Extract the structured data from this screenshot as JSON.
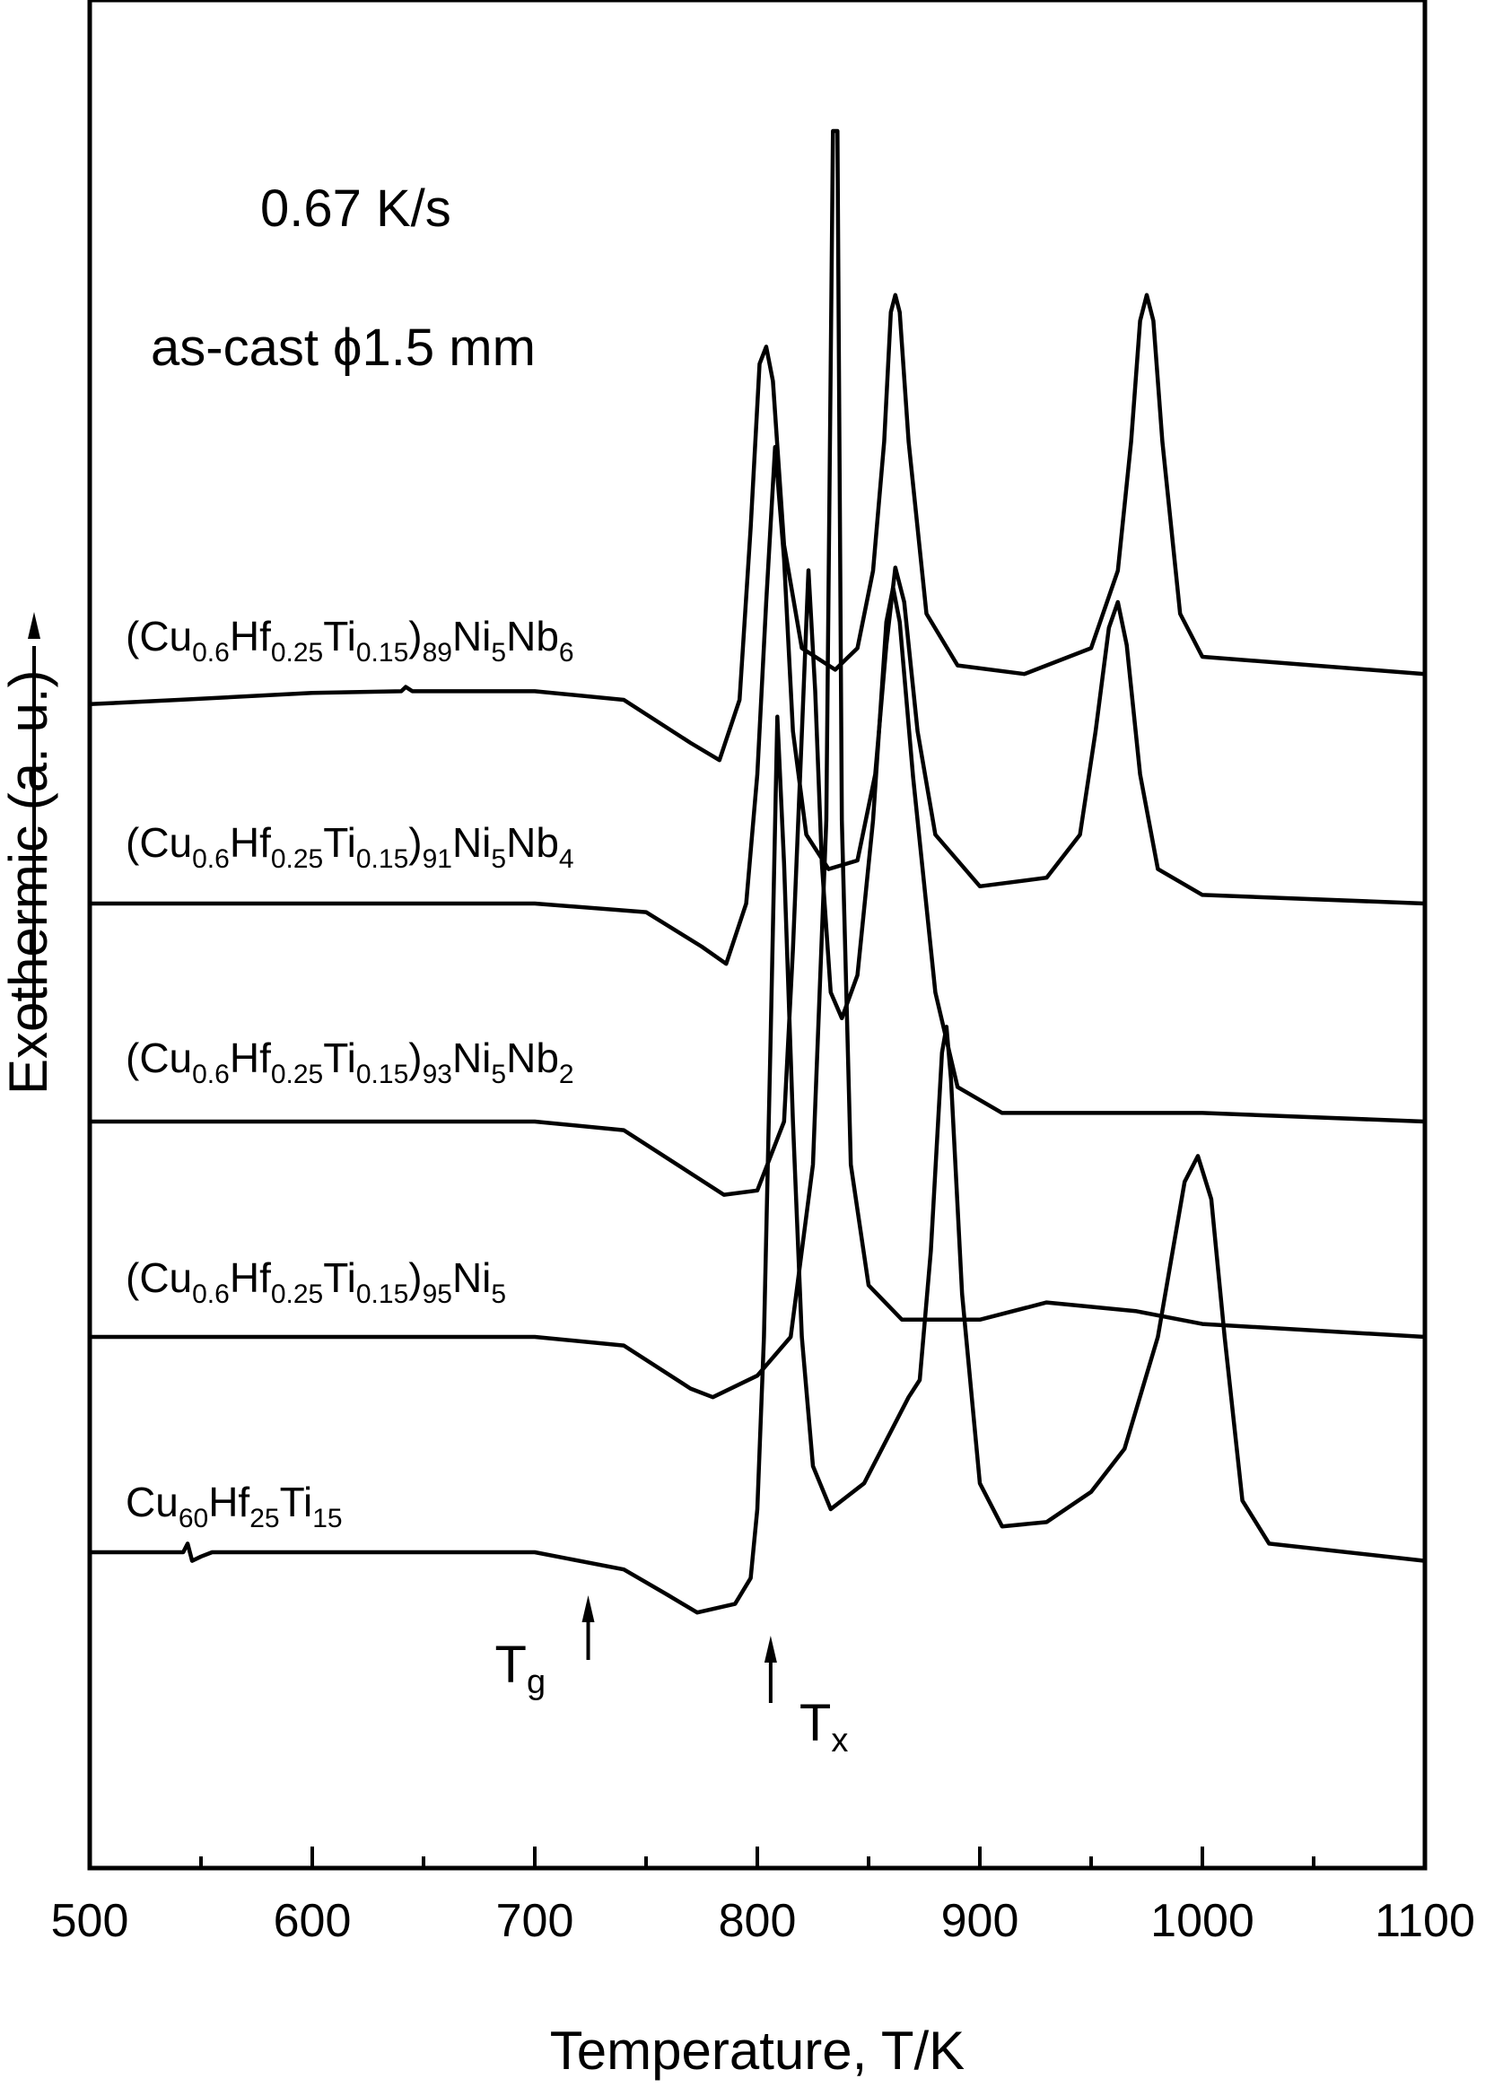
{
  "chart_data": {
    "type": "line",
    "xlabel": "Temperature, T/K",
    "ylabel": "Exothermic (a. u.)",
    "xlim": [
      500,
      1100
    ],
    "xticks": [
      500,
      600,
      700,
      800,
      900,
      1000,
      1100
    ],
    "grid": false,
    "annotations": {
      "rate": "0.67 K/s",
      "sample": "as-cast ϕ1.5 mm",
      "tg": {
        "base": "T",
        "sub": "g",
        "x": 724
      },
      "tx": {
        "base": "T",
        "sub": "x",
        "x": 806
      }
    },
    "series": [
      {
        "name_parts": [
          {
            "t": "(Cu"
          },
          {
            "t": "0.6",
            "sub": true
          },
          {
            "t": "Hf"
          },
          {
            "t": "0.25",
            "sub": true
          },
          {
            "t": "Ti"
          },
          {
            "t": "0.15",
            "sub": true
          },
          {
            "t": ")"
          },
          {
            "t": "89",
            "sub": true
          },
          {
            "t": "Ni"
          },
          {
            "t": "5",
            "sub": true
          },
          {
            "t": "Nb"
          },
          {
            "t": "6",
            "sub": true
          }
        ],
        "points": [
          [
            500,
            -0.05
          ],
          [
            540,
            0
          ],
          [
            600,
            0.08
          ],
          [
            640,
            0.1
          ],
          [
            642,
            0.15
          ],
          [
            645,
            0.1
          ],
          [
            700,
            0.1
          ],
          [
            740,
            0
          ],
          [
            770,
            -0.5
          ],
          [
            783,
            -0.7
          ],
          [
            792,
            0
          ],
          [
            797,
            2
          ],
          [
            801,
            3.9
          ],
          [
            804,
            4.1
          ],
          [
            807,
            3.7
          ],
          [
            812,
            1.8
          ],
          [
            820,
            0.6
          ],
          [
            835,
            0.35
          ],
          [
            845,
            0.6
          ],
          [
            852,
            1.5
          ],
          [
            857,
            3
          ],
          [
            860,
            4.5
          ],
          [
            862,
            4.7
          ],
          [
            864,
            4.5
          ],
          [
            868,
            3
          ],
          [
            876,
            1
          ],
          [
            890,
            0.4
          ],
          [
            920,
            0.3
          ],
          [
            950,
            0.6
          ],
          [
            962,
            1.5
          ],
          [
            968,
            3
          ],
          [
            972,
            4.4
          ],
          [
            975,
            4.7
          ],
          [
            978,
            4.4
          ],
          [
            982,
            3
          ],
          [
            990,
            1
          ],
          [
            1000,
            0.5
          ],
          [
            1050,
            0.4
          ],
          [
            1100,
            0.3
          ]
        ]
      },
      {
        "name_parts": [
          {
            "t": "(Cu"
          },
          {
            "t": "0.6",
            "sub": true
          },
          {
            "t": "Hf"
          },
          {
            "t": "0.25",
            "sub": true
          },
          {
            "t": "Ti"
          },
          {
            "t": "0.15",
            "sub": true
          },
          {
            "t": ")"
          },
          {
            "t": "91",
            "sub": true
          },
          {
            "t": "Ni"
          },
          {
            "t": "5",
            "sub": true
          },
          {
            "t": "Nb"
          },
          {
            "t": "4",
            "sub": true
          }
        ],
        "points": [
          [
            500,
            0
          ],
          [
            700,
            0
          ],
          [
            750,
            -0.1
          ],
          [
            775,
            -0.5
          ],
          [
            786,
            -0.7
          ],
          [
            795,
            0
          ],
          [
            800,
            1.5
          ],
          [
            804,
            3.5
          ],
          [
            808,
            5.3
          ],
          [
            812,
            4
          ],
          [
            816,
            2
          ],
          [
            822,
            0.8
          ],
          [
            832,
            0.4
          ],
          [
            845,
            0.5
          ],
          [
            853,
            1.5
          ],
          [
            858,
            3
          ],
          [
            862,
            3.9
          ],
          [
            866,
            3.5
          ],
          [
            872,
            2
          ],
          [
            880,
            0.8
          ],
          [
            900,
            0.2
          ],
          [
            930,
            0.3
          ],
          [
            945,
            0.8
          ],
          [
            952,
            2
          ],
          [
            958,
            3.2
          ],
          [
            962,
            3.5
          ],
          [
            966,
            3
          ],
          [
            972,
            1.5
          ],
          [
            980,
            0.4
          ],
          [
            1000,
            0.1
          ],
          [
            1100,
            0
          ]
        ]
      },
      {
        "name_parts": [
          {
            "t": "(Cu"
          },
          {
            "t": "0.6",
            "sub": true
          },
          {
            "t": "Hf"
          },
          {
            "t": "0.25",
            "sub": true
          },
          {
            "t": "Ti"
          },
          {
            "t": "0.15",
            "sub": true
          },
          {
            "t": ")"
          },
          {
            "t": "93",
            "sub": true
          },
          {
            "t": "Ni"
          },
          {
            "t": "5",
            "sub": true
          },
          {
            "t": "Nb"
          },
          {
            "t": "2",
            "sub": true
          }
        ],
        "points": [
          [
            500,
            0
          ],
          [
            700,
            0
          ],
          [
            740,
            -0.1
          ],
          [
            770,
            -0.6
          ],
          [
            785,
            -0.85
          ],
          [
            800,
            -0.8
          ],
          [
            812,
            0
          ],
          [
            816,
            2
          ],
          [
            820,
            4.5
          ],
          [
            823,
            6.4
          ],
          [
            826,
            5
          ],
          [
            829,
            3
          ],
          [
            833,
            1.5
          ],
          [
            838,
            1.2
          ],
          [
            845,
            1.7
          ],
          [
            852,
            3.5
          ],
          [
            858,
            5.8
          ],
          [
            861,
            6.2
          ],
          [
            864,
            5.8
          ],
          [
            870,
            4
          ],
          [
            880,
            1.5
          ],
          [
            890,
            0.4
          ],
          [
            910,
            0.1
          ],
          [
            950,
            0.1
          ],
          [
            1000,
            0.1
          ],
          [
            1100,
            0
          ]
        ]
      },
      {
        "name_parts": [
          {
            "t": "(Cu"
          },
          {
            "t": "0.6",
            "sub": true
          },
          {
            "t": "Hf"
          },
          {
            "t": "0.25",
            "sub": true
          },
          {
            "t": "Ti"
          },
          {
            "t": "0.15",
            "sub": true
          },
          {
            "t": ")"
          },
          {
            "t": "95",
            "sub": true
          },
          {
            "t": "Ni"
          },
          {
            "t": "5",
            "sub": true
          }
        ],
        "points": [
          [
            500,
            0
          ],
          [
            700,
            0
          ],
          [
            740,
            -0.1
          ],
          [
            770,
            -0.6
          ],
          [
            780,
            -0.7
          ],
          [
            800,
            -0.45
          ],
          [
            815,
            0
          ],
          [
            825,
            2
          ],
          [
            831,
            6
          ],
          [
            834,
            14
          ],
          [
            836,
            14
          ],
          [
            838,
            6
          ],
          [
            842,
            2
          ],
          [
            850,
            0.6
          ],
          [
            865,
            0.2
          ],
          [
            900,
            0.2
          ],
          [
            930,
            0.4
          ],
          [
            970,
            0.3
          ],
          [
            1000,
            0.15
          ],
          [
            1100,
            0
          ]
        ]
      },
      {
        "name_parts": [
          {
            "t": "Cu"
          },
          {
            "t": "60",
            "sub": true
          },
          {
            "t": "Hf"
          },
          {
            "t": "25",
            "sub": true
          },
          {
            "t": "Ti"
          },
          {
            "t": "15",
            "sub": true
          }
        ],
        "points": [
          [
            500,
            0
          ],
          [
            542,
            0
          ],
          [
            544,
            0.1
          ],
          [
            546,
            -0.1
          ],
          [
            550,
            -0.05
          ],
          [
            555,
            0
          ],
          [
            700,
            0
          ],
          [
            740,
            -0.2
          ],
          [
            760,
            -0.5
          ],
          [
            773,
            -0.7
          ],
          [
            790,
            -0.6
          ],
          [
            797,
            -0.3
          ],
          [
            800,
            0.5
          ],
          [
            803,
            2.5
          ],
          [
            806,
            6
          ],
          [
            809,
            9.7
          ],
          [
            812,
            8
          ],
          [
            816,
            5
          ],
          [
            820,
            2.5
          ],
          [
            825,
            1
          ],
          [
            833,
            0.5
          ],
          [
            848,
            0.8
          ],
          [
            858,
            1.3
          ],
          [
            868,
            1.8
          ],
          [
            873,
            2
          ],
          [
            878,
            3.5
          ],
          [
            883,
            5.8
          ],
          [
            885,
            6.1
          ],
          [
            887,
            5.5
          ],
          [
            892,
            3
          ],
          [
            900,
            0.8
          ],
          [
            910,
            0.3
          ],
          [
            930,
            0.35
          ],
          [
            950,
            0.7
          ],
          [
            965,
            1.2
          ],
          [
            980,
            2.5
          ],
          [
            992,
            4.3
          ],
          [
            998,
            4.6
          ],
          [
            1004,
            4.1
          ],
          [
            1010,
            2.5
          ],
          [
            1018,
            0.6
          ],
          [
            1030,
            0.1
          ],
          [
            1100,
            -0.1
          ]
        ]
      }
    ]
  }
}
